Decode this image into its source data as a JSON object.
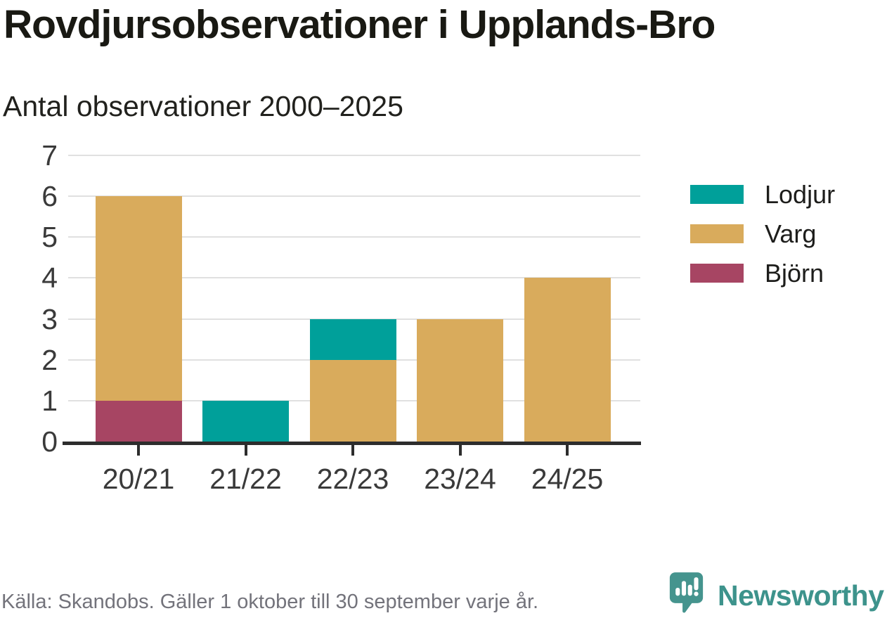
{
  "title": "Rovdjursobservationer i Upplands-Bro",
  "subtitle": "Antal observationer 2000–2025",
  "footer": {
    "source": "Källa: Skandobs. Gäller 1 oktober till 30 september varje år.",
    "brand": "Newsworthy"
  },
  "colors": {
    "lodjur": "#00a09a",
    "varg": "#d9ab5c",
    "bjorn": "#a74563",
    "gridline": "#e0e0e0",
    "axis": "#2d2d2d",
    "brand_teal": "#3d938c",
    "source_gray": "#73737b"
  },
  "icons": {
    "brand_icon": "newsworthy-speech-bubble-bar-chart-exclamation-icon"
  },
  "chart_data": {
    "type": "bar",
    "stacked": true,
    "title": "Rovdjursobservationer i Upplands-Bro",
    "subtitle": "Antal observationer 2000–2025",
    "categories": [
      "20/21",
      "21/22",
      "22/23",
      "23/24",
      "24/25"
    ],
    "series": [
      {
        "name": "Lodjur",
        "color": "#00a09a",
        "values": [
          0,
          1,
          1,
          0,
          0
        ]
      },
      {
        "name": "Varg",
        "color": "#d9ab5c",
        "values": [
          5,
          0,
          2,
          3,
          4
        ]
      },
      {
        "name": "Björn",
        "color": "#a74563",
        "values": [
          1,
          0,
          0,
          0,
          0
        ]
      }
    ],
    "totals": [
      6,
      1,
      3,
      3,
      4
    ],
    "stack_order_bottom_to_top": [
      "Björn",
      "Varg",
      "Lodjur"
    ],
    "xlabel": "",
    "ylabel": "",
    "ylim": [
      0,
      7
    ],
    "yticks": [
      0,
      1,
      2,
      3,
      4,
      5,
      6,
      7
    ],
    "grid": true,
    "legend_position": "right"
  }
}
